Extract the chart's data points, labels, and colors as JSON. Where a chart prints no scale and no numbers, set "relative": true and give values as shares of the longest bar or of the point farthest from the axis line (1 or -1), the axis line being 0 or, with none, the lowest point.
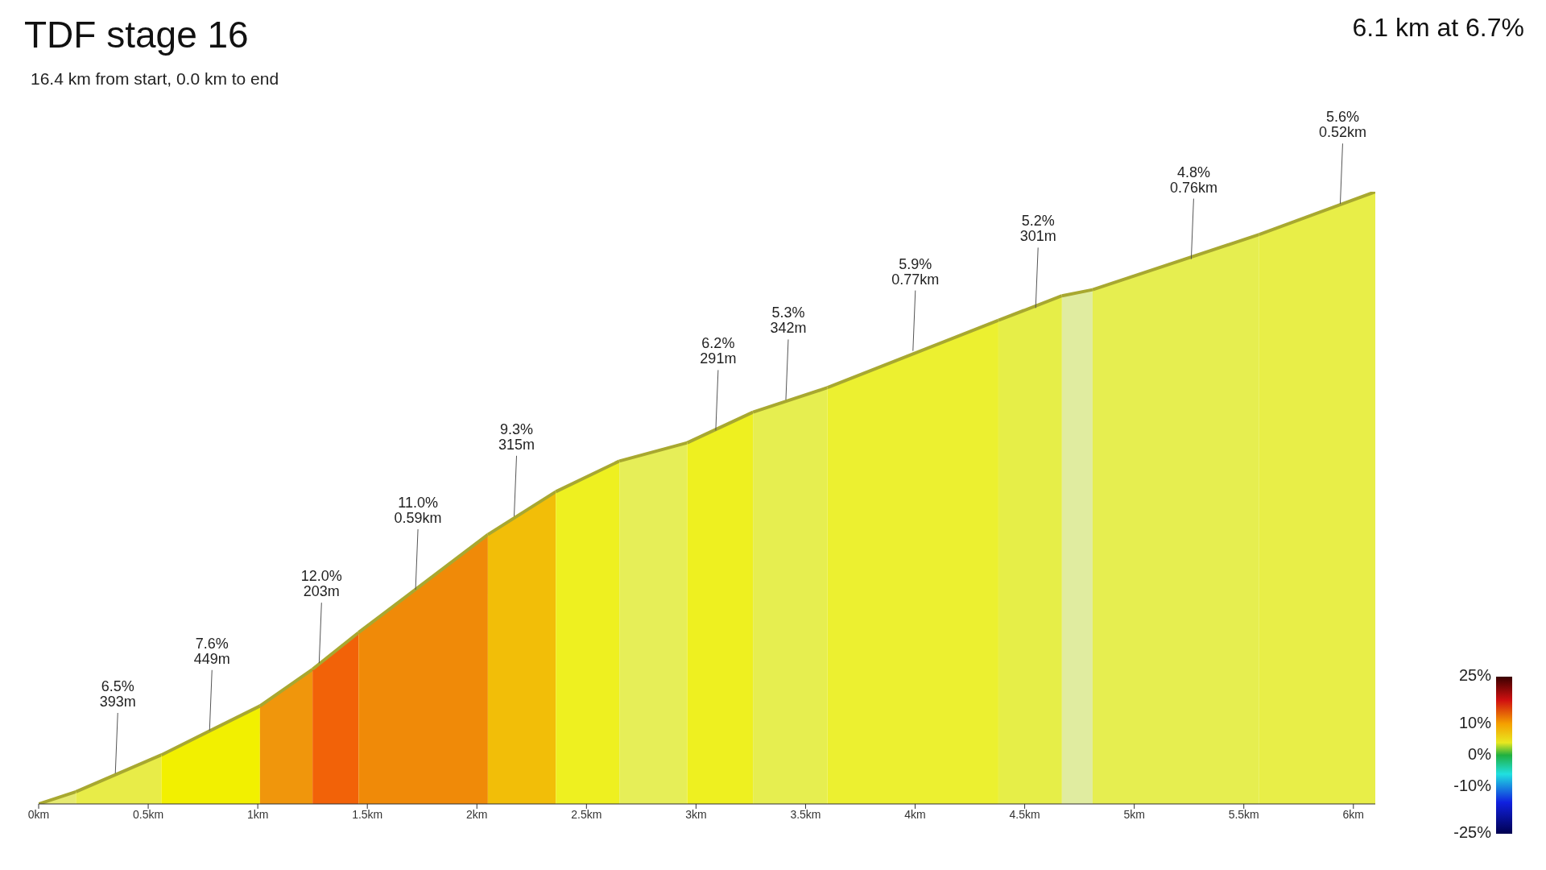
{
  "chart_data": {
    "type": "area",
    "title": "TDF stage 16",
    "subtitle": "16.4 km from start, 0.0 km to end",
    "relative": true,
    "xlim": [
      0,
      6.1
    ],
    "xticks": [
      {
        "value": 0,
        "label": "0km"
      },
      {
        "value": 0.5,
        "label": "0.5km"
      },
      {
        "value": 1,
        "label": "1km"
      },
      {
        "value": 1.5,
        "label": "1.5km"
      },
      {
        "value": 2,
        "label": "2km"
      },
      {
        "value": 2.5,
        "label": "2.5km"
      },
      {
        "value": 3,
        "label": "3km"
      },
      {
        "value": 3.5,
        "label": "3.5km"
      },
      {
        "value": 4,
        "label": "4km"
      },
      {
        "value": 4.5,
        "label": "4.5km"
      },
      {
        "value": 5,
        "label": "5km"
      },
      {
        "value": 5.5,
        "label": "5.5km"
      },
      {
        "value": 6,
        "label": "6km"
      }
    ],
    "clim": [
      -25,
      25
    ],
    "cticks": [
      {
        "value": 25,
        "label": "25%"
      },
      {
        "value": 10,
        "label": "10%"
      },
      {
        "value": 0,
        "label": "0%"
      },
      {
        "value": -10,
        "label": "-10%"
      },
      {
        "value": -25,
        "label": "-25%"
      }
    ],
    "annotations": [
      "6.1 km at 6.7%",
      {
        "text": "6.5%\n393m",
        "x": 0.35,
        "y": 0.05
      },
      {
        "text": "7.6%\n449m",
        "x": 0.78,
        "y": 0.12
      },
      {
        "text": "12.0%\n203m",
        "x": 1.28,
        "y": 0.23
      },
      {
        "text": "11.0%\n0.59km",
        "x": 1.72,
        "y": 0.35
      },
      {
        "text": "9.3%\n315m",
        "x": 2.17,
        "y": 0.47
      },
      {
        "text": "6.2%\n291m",
        "x": 3.09,
        "y": 0.61
      },
      {
        "text": "5.3%\n342m",
        "x": 3.41,
        "y": 0.66
      },
      {
        "text": "5.9%\n0.77km",
        "x": 3.99,
        "y": 0.74
      },
      {
        "text": "5.2%\n301m",
        "x": 4.55,
        "y": 0.81
      },
      {
        "text": "4.8%\n0.76km",
        "x": 5.26,
        "y": 0.89
      },
      {
        "text": "5.6%\n0.52km",
        "x": 5.94,
        "y": 0.98
      }
    ],
    "series": [
      {
        "color": "#e6ea70",
        "x": [
          0,
          0.17
        ],
        "values": [
          0,
          0.02
        ]
      },
      {
        "color": "#e8ec48",
        "x": [
          0.17,
          0.56
        ],
        "values": [
          0.02,
          0.08
        ]
      },
      {
        "color": "#f2f000",
        "x": [
          0.56,
          1.01
        ],
        "values": [
          0.08,
          0.16
        ]
      },
      {
        "color": "#f0960c",
        "x": [
          1.01,
          1.25
        ],
        "values": [
          0.16,
          0.22
        ]
      },
      {
        "color": "#f26208",
        "x": [
          1.25,
          1.46
        ],
        "values": [
          0.22,
          0.28
        ]
      },
      {
        "color": "#f08a08",
        "x": [
          1.46,
          2.05
        ],
        "values": [
          0.28,
          0.44
        ]
      },
      {
        "color": "#f2be08",
        "x": [
          2.05,
          2.36
        ],
        "values": [
          0.44,
          0.51
        ]
      },
      {
        "color": "#eef020",
        "x": [
          2.36,
          2.65
        ],
        "values": [
          0.51,
          0.56
        ]
      },
      {
        "color": "#e6ee58",
        "x": [
          2.65,
          2.96
        ],
        "values": [
          0.56,
          0.59
        ]
      },
      {
        "color": "#eef020",
        "x": [
          2.96,
          3.26
        ],
        "values": [
          0.59,
          0.64
        ]
      },
      {
        "color": "#e6ee50",
        "x": [
          3.26,
          3.6
        ],
        "values": [
          0.64,
          0.68
        ]
      },
      {
        "color": "#ecf030",
        "x": [
          3.6,
          4.38
        ],
        "values": [
          0.68,
          0.79
        ]
      },
      {
        "color": "#e6ee48",
        "x": [
          4.38,
          4.67
        ],
        "values": [
          0.79,
          0.83
        ]
      },
      {
        "color": "#e0eca0",
        "x": [
          4.67,
          4.81
        ],
        "values": [
          0.83,
          0.84
        ]
      },
      {
        "color": "#e6ee50",
        "x": [
          4.81,
          5.57
        ],
        "values": [
          0.84,
          0.93
        ]
      },
      {
        "color": "#e8ee48",
        "x": [
          5.57,
          6.1
        ],
        "values": [
          0.93,
          1
        ]
      }
    ]
  }
}
